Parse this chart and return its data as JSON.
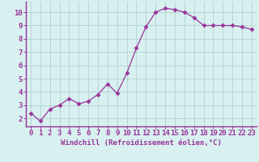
{
  "x": [
    0,
    1,
    2,
    3,
    4,
    5,
    6,
    7,
    8,
    9,
    10,
    11,
    12,
    13,
    14,
    15,
    16,
    17,
    18,
    19,
    20,
    21,
    22,
    23
  ],
  "y": [
    2.4,
    1.8,
    2.7,
    3.0,
    3.5,
    3.1,
    3.3,
    3.8,
    4.6,
    3.9,
    5.4,
    7.3,
    8.9,
    10.0,
    10.3,
    10.2,
    10.0,
    9.6,
    9.0,
    9.0,
    9.0,
    9.0,
    8.9,
    8.7
  ],
  "line_color": "#993399",
  "marker": "D",
  "marker_size": 2.5,
  "bg_color": "#d8f0f0",
  "grid_color": "#aacccc",
  "xlabel": "Windchill (Refroidissement éolien,°C)",
  "ylabel": "",
  "title": "",
  "xlim": [
    -0.5,
    23.5
  ],
  "ylim": [
    1.4,
    10.8
  ],
  "yticks": [
    2,
    3,
    4,
    5,
    6,
    7,
    8,
    9,
    10
  ],
  "xticks": [
    0,
    1,
    2,
    3,
    4,
    5,
    6,
    7,
    8,
    9,
    10,
    11,
    12,
    13,
    14,
    15,
    16,
    17,
    18,
    19,
    20,
    21,
    22,
    23
  ],
  "xlabel_color": "#993399",
  "tick_color": "#993399",
  "axis_color": "#993399",
  "spine_color": "#993399",
  "font_size": 6.5
}
